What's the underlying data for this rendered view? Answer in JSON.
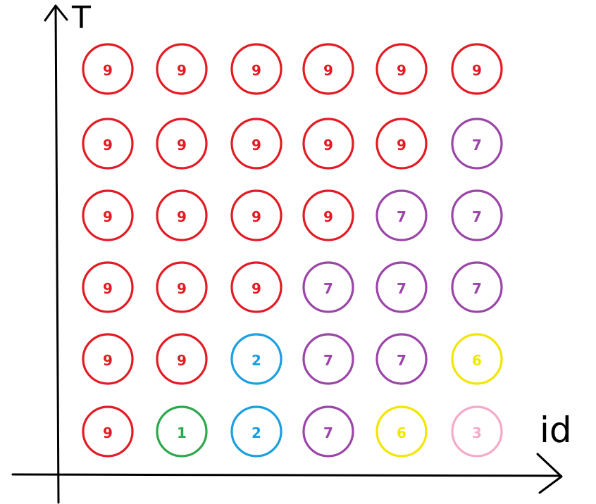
{
  "axes": {
    "y_label": "T",
    "x_label": "id"
  },
  "colors": {
    "9": "#e31b23",
    "7": "#9b45a8",
    "2": "#1a9fe0",
    "1": "#2ca84a",
    "6": "#f2e600",
    "3": "#f6a9c8"
  },
  "grid": {
    "rows": [
      [
        "9",
        "9",
        "9",
        "9",
        "9",
        "9"
      ],
      [
        "9",
        "9",
        "9",
        "9",
        "9",
        "7"
      ],
      [
        "9",
        "9",
        "9",
        "9",
        "7",
        "7"
      ],
      [
        "9",
        "9",
        "9",
        "7",
        "7",
        "7"
      ],
      [
        "9",
        "9",
        "2",
        "7",
        "7",
        "6"
      ],
      [
        "9",
        "1",
        "2",
        "7",
        "6",
        "3"
      ]
    ]
  }
}
